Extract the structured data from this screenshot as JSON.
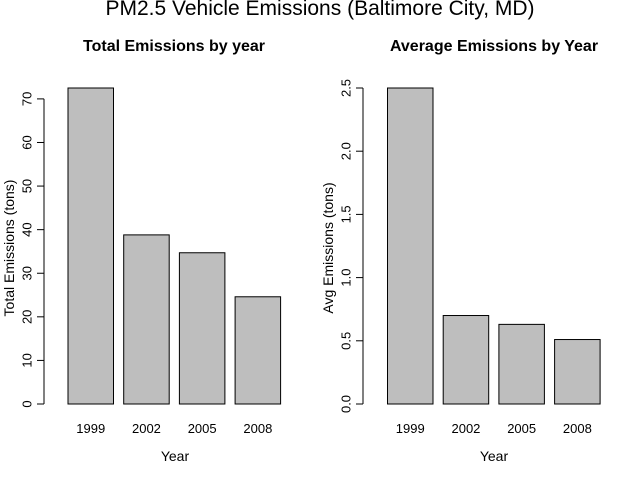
{
  "figure": {
    "title": "PM2.5 Vehicle Emissions (Baltimore City, MD)",
    "background": "#ffffff",
    "bar_fill": "#bebebe",
    "bar_stroke": "#000000"
  },
  "chart_data": [
    {
      "type": "bar",
      "title": "Total Emissions by year",
      "xlabel": "Year",
      "ylabel": "Total Emissions (tons)",
      "categories": [
        "1999",
        "2002",
        "2005",
        "2008"
      ],
      "values": [
        72.5,
        38.8,
        34.7,
        24.6
      ],
      "ylim": [
        0,
        72.5
      ],
      "yticks": [
        0,
        10,
        20,
        30,
        40,
        50,
        60,
        70
      ],
      "ytick_labels": [
        "0",
        "10",
        "20",
        "30",
        "40",
        "50",
        "60",
        "70"
      ],
      "grid": false,
      "legend": "none"
    },
    {
      "type": "bar",
      "title": "Average Emissions by Year",
      "xlabel": "Year",
      "ylabel": "Avg Emissions (tons)",
      "categories": [
        "1999",
        "2002",
        "2005",
        "2008"
      ],
      "values": [
        2.5,
        0.7,
        0.63,
        0.51
      ],
      "ylim": [
        0,
        2.5
      ],
      "yticks": [
        0.0,
        0.5,
        1.0,
        1.5,
        2.0,
        2.5
      ],
      "ytick_labels": [
        "0.0",
        "0.5",
        "1.0",
        "1.5",
        "2.0",
        "2.5"
      ],
      "grid": false,
      "legend": "none"
    }
  ]
}
